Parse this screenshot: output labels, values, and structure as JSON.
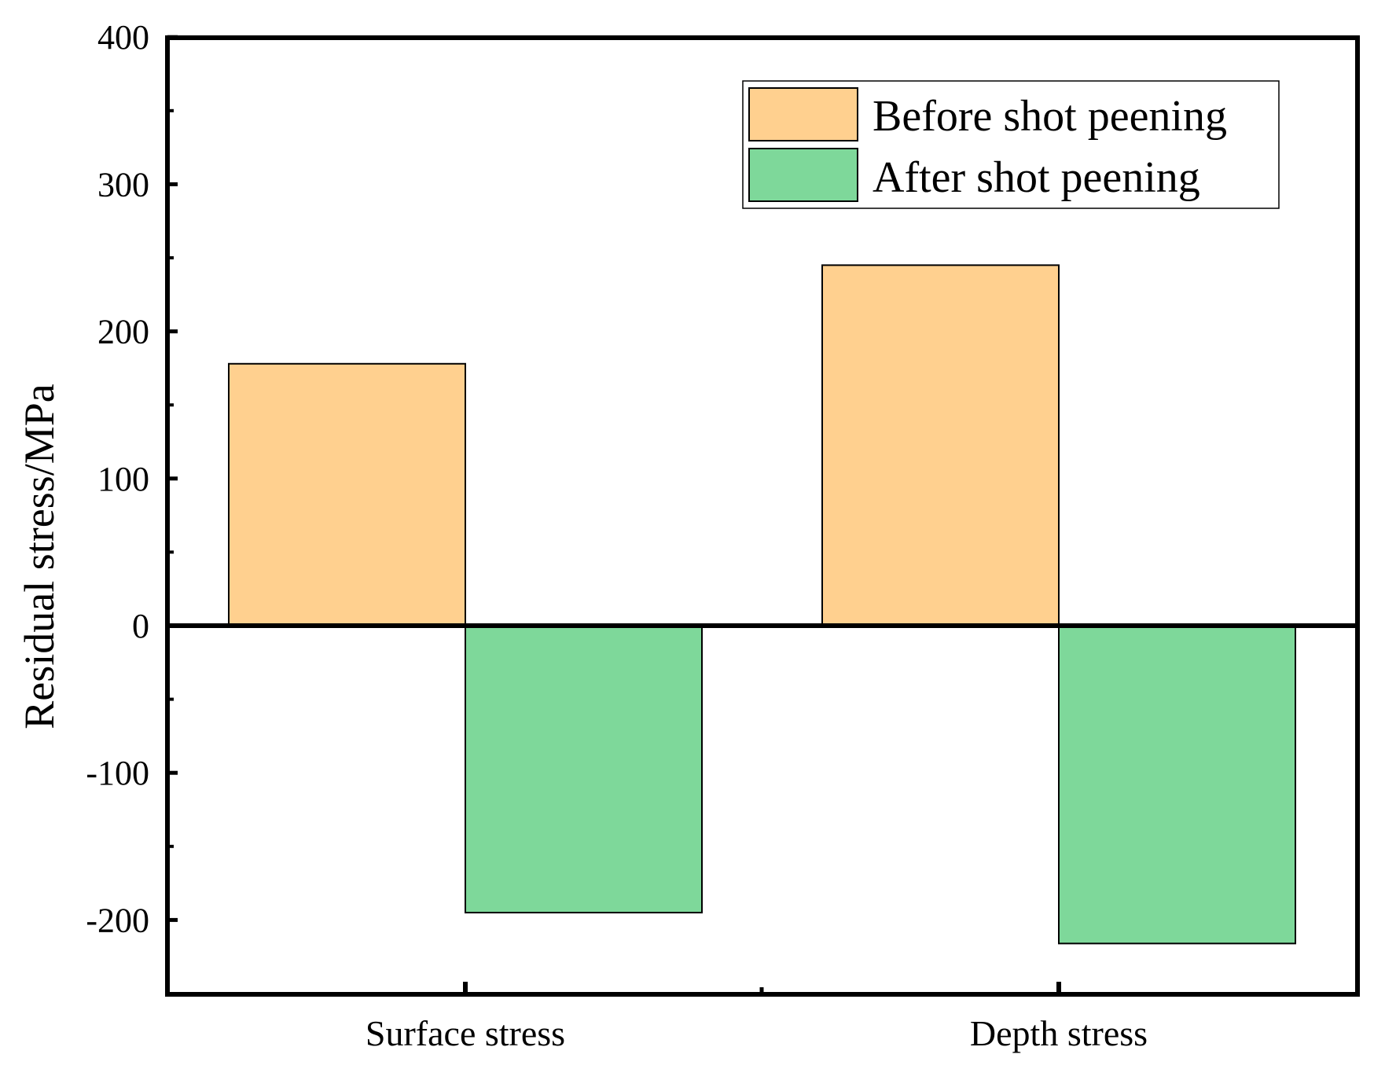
{
  "chart_data": {
    "type": "bar",
    "title": "",
    "xlabel": "",
    "ylabel": "Residual stress/MPa",
    "ylim": [
      -250,
      400
    ],
    "yticks": [
      400,
      300,
      200,
      100,
      0,
      -100,
      -200
    ],
    "categories": [
      "Surface stress",
      "Depth stress"
    ],
    "series": [
      {
        "name": "Before shot peening",
        "color": "#FFD08F",
        "values": [
          178,
          245
        ]
      },
      {
        "name": "After shot peening",
        "color": "#7ED89A",
        "values": [
          -195,
          -216
        ]
      }
    ],
    "legend_position": "top-right",
    "grid": false
  }
}
